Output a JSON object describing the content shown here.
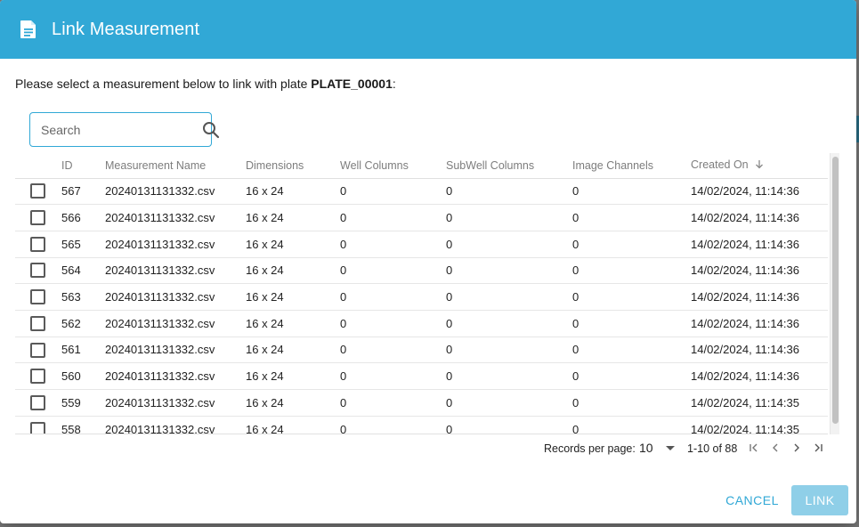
{
  "dialog": {
    "title": "Link Measurement",
    "prompt_text": "Please select a measurement below to link with plate ",
    "plate_name": "PLATE_00001",
    "prompt_suffix": ":"
  },
  "search": {
    "placeholder": "Search",
    "value": ""
  },
  "table": {
    "columns": [
      "ID",
      "Measurement Name",
      "Dimensions",
      "Well Columns",
      "SubWell Columns",
      "Image Channels",
      "Created On"
    ],
    "sorted_column": "Created On",
    "rows": [
      {
        "id": "567",
        "name": "20240131131332.csv",
        "dimensions": "16 x 24",
        "well_columns": "0",
        "subwell_columns": "0",
        "image_channels": "0",
        "created_on": "14/02/2024, 11:14:36"
      },
      {
        "id": "566",
        "name": "20240131131332.csv",
        "dimensions": "16 x 24",
        "well_columns": "0",
        "subwell_columns": "0",
        "image_channels": "0",
        "created_on": "14/02/2024, 11:14:36"
      },
      {
        "id": "565",
        "name": "20240131131332.csv",
        "dimensions": "16 x 24",
        "well_columns": "0",
        "subwell_columns": "0",
        "image_channels": "0",
        "created_on": "14/02/2024, 11:14:36"
      },
      {
        "id": "564",
        "name": "20240131131332.csv",
        "dimensions": "16 x 24",
        "well_columns": "0",
        "subwell_columns": "0",
        "image_channels": "0",
        "created_on": "14/02/2024, 11:14:36"
      },
      {
        "id": "563",
        "name": "20240131131332.csv",
        "dimensions": "16 x 24",
        "well_columns": "0",
        "subwell_columns": "0",
        "image_channels": "0",
        "created_on": "14/02/2024, 11:14:36"
      },
      {
        "id": "562",
        "name": "20240131131332.csv",
        "dimensions": "16 x 24",
        "well_columns": "0",
        "subwell_columns": "0",
        "image_channels": "0",
        "created_on": "14/02/2024, 11:14:36"
      },
      {
        "id": "561",
        "name": "20240131131332.csv",
        "dimensions": "16 x 24",
        "well_columns": "0",
        "subwell_columns": "0",
        "image_channels": "0",
        "created_on": "14/02/2024, 11:14:36"
      },
      {
        "id": "560",
        "name": "20240131131332.csv",
        "dimensions": "16 x 24",
        "well_columns": "0",
        "subwell_columns": "0",
        "image_channels": "0",
        "created_on": "14/02/2024, 11:14:36"
      },
      {
        "id": "559",
        "name": "20240131131332.csv",
        "dimensions": "16 x 24",
        "well_columns": "0",
        "subwell_columns": "0",
        "image_channels": "0",
        "created_on": "14/02/2024, 11:14:35"
      },
      {
        "id": "558",
        "name": "20240131131332.csv",
        "dimensions": "16 x 24",
        "well_columns": "0",
        "subwell_columns": "0",
        "image_channels": "0",
        "created_on": "14/02/2024, 11:14:35"
      }
    ]
  },
  "pagination": {
    "records_per_page_label": "Records per page:",
    "records_per_page_value": "10",
    "range_text": "1-10 of 88"
  },
  "actions": {
    "cancel_label": "CANCEL",
    "link_label": "LINK"
  },
  "colors": {
    "accent": "#31a8d6",
    "link_button_disabled": "#8fcfe8"
  },
  "icons": {
    "header": "document-icon",
    "search": "search-icon",
    "sort": "arrow-down-icon",
    "first_page": "first-page-icon",
    "prev_page": "chevron-left-icon",
    "next_page": "chevron-right-icon",
    "last_page": "last-page-icon"
  }
}
